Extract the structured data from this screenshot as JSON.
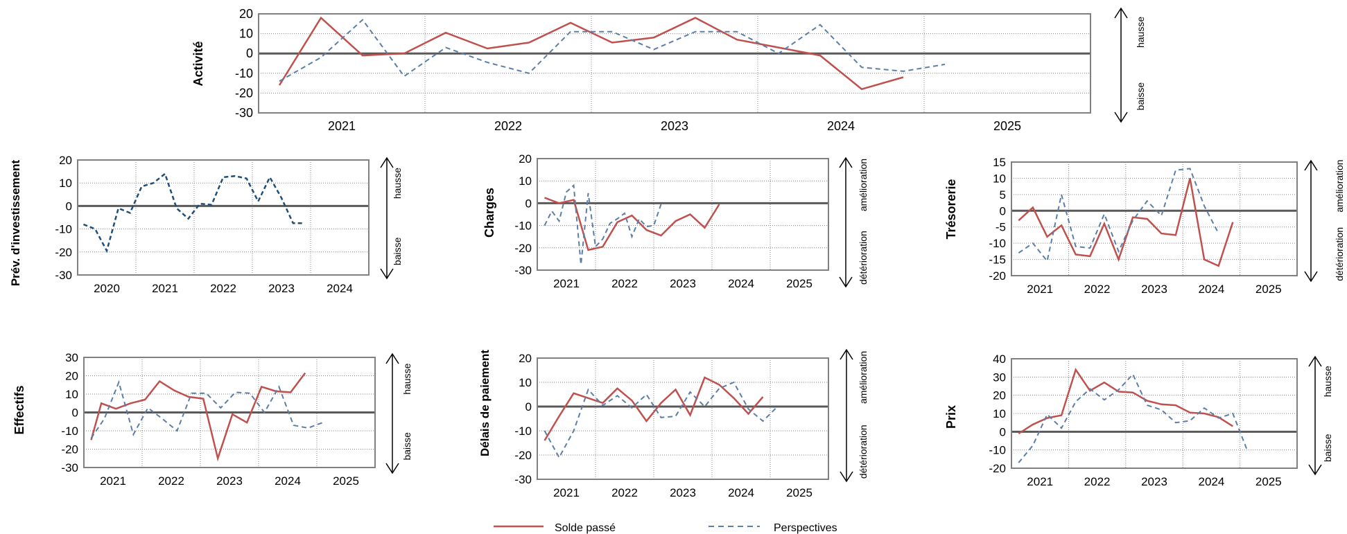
{
  "colors": {
    "past": "#c0504d",
    "outlook": "#5b7ea6",
    "investment": "#1f4e79",
    "zero_line": "#595959",
    "grid": "#7f7f7f"
  },
  "legend": {
    "past_label": "Solde passé",
    "outlook_label": "Perspectives"
  },
  "chart_data": [
    {
      "type": "line",
      "title": "Activité",
      "ylim": [
        -30,
        20
      ],
      "yticks": [
        -30,
        -20,
        -10,
        0,
        10,
        20
      ],
      "xlim": [
        2020.0,
        2025.0
      ],
      "xticks": [
        "2021",
        "2022",
        "2023",
        "2024",
        "2025"
      ],
      "grid_years": [
        2021,
        2022,
        2023,
        2024
      ],
      "arrow_labels": {
        "top": "hausse",
        "bottom": "baisse"
      },
      "series": [
        {
          "name": "Solde passé",
          "style": "past",
          "x": [
            2020.125,
            2020.375,
            2020.625,
            2020.875,
            2021.125,
            2021.375,
            2021.625,
            2021.875,
            2022.125,
            2022.375,
            2022.625,
            2022.875,
            2023.125,
            2023.375,
            2023.625,
            2023.875,
            2024.125
          ],
          "y": [
            -16,
            18,
            -1,
            0,
            10.5,
            2.5,
            5.5,
            15.5,
            5.5,
            8,
            18,
            7,
            3,
            -1,
            -18,
            -12,
            null
          ]
        },
        {
          "name": "Perspectives",
          "style": "outlook",
          "x": [
            2020.125,
            2020.375,
            2020.625,
            2020.875,
            2021.125,
            2021.375,
            2021.625,
            2021.875,
            2022.125,
            2022.375,
            2022.625,
            2022.875,
            2023.125,
            2023.375,
            2023.625,
            2023.875,
            2024.125,
            2024.375
          ],
          "y": [
            -14,
            -2,
            17,
            -11.5,
            3,
            -4.5,
            -10,
            11,
            11,
            2,
            11,
            11,
            0,
            14.5,
            -7,
            -9,
            -5.5,
            null
          ]
        }
      ]
    },
    {
      "type": "line",
      "title": "Prév. d'investissement",
      "ylim": [
        -30,
        20
      ],
      "yticks": [
        -30,
        -20,
        -10,
        0,
        10,
        20
      ],
      "xlim": [
        2019.5,
        2024.5
      ],
      "xticks": [
        "2020",
        "2021",
        "2022",
        "2023",
        "2024"
      ],
      "grid_years": [
        2020.5,
        2021.5,
        2022.5,
        2023.5
      ],
      "arrow_labels": {
        "top": "hausse",
        "bottom": "baisse"
      },
      "series": [
        {
          "name": "",
          "style": "investment",
          "x": [
            2019.6,
            2019.8,
            2020.0,
            2020.2,
            2020.4,
            2020.6,
            2020.8,
            2021.0,
            2021.2,
            2021.4,
            2021.6,
            2021.8,
            2022.0,
            2022.2,
            2022.4,
            2022.6,
            2022.8,
            2023.0,
            2023.2,
            2023.4,
            2023.6,
            2023.8,
            2024.0,
            2024.2,
            2024.4
          ],
          "y": [
            -8,
            -10,
            -19.5,
            -1,
            -3,
            8.5,
            10,
            14,
            -1,
            -5.5,
            1,
            0.5,
            12.5,
            13,
            12,
            2,
            12.5,
            3.5,
            -7.5,
            -7.5,
            null,
            null,
            null,
            null,
            null
          ]
        }
      ]
    },
    {
      "type": "line",
      "title": "Charges",
      "ylim": [
        -30,
        20
      ],
      "yticks": [
        -30,
        -20,
        -10,
        0,
        10,
        20
      ],
      "xlim": [
        2020.0,
        2025.0
      ],
      "xticks": [
        "2021",
        "2022",
        "2023",
        "2024",
        "2025"
      ],
      "grid_years": [
        2021,
        2022,
        2023,
        2024
      ],
      "arrow_labels": {
        "top": "amélioration",
        "bottom": "détérioration"
      },
      "series": [
        {
          "name": "Solde passé",
          "style": "past",
          "x": [
            2020.125,
            2020.375,
            2020.625,
            2020.875,
            2021.125,
            2021.375,
            2021.625,
            2021.875,
            2022.125,
            2022.375,
            2022.625,
            2022.875,
            2023.125,
            2023.375,
            2023.625,
            2023.875,
            2024.125
          ],
          "y": [
            2.5,
            0,
            1.5,
            -21,
            -19.5,
            -8.5,
            -5.5,
            -12,
            -14.5,
            -8,
            -5,
            -11,
            -0.5,
            null,
            null,
            null,
            null
          ]
        },
        {
          "name": "Perspectives",
          "style": "outlook",
          "x": [
            2020.125,
            2020.25,
            2020.375,
            2020.5,
            2020.625,
            2020.75,
            2020.875,
            2021.0,
            2021.125,
            2021.25,
            2021.375,
            2021.5,
            2021.625,
            2021.75,
            2021.875,
            2022.0,
            2022.125,
            2022.25,
            2022.375
          ],
          "y": [
            -10,
            -3.5,
            -8,
            5,
            8,
            -27.5,
            4.5,
            -19.5,
            -16,
            -9,
            -7,
            -4.5,
            -15,
            -7,
            -10.5,
            -10,
            -0.5,
            null,
            null
          ]
        }
      ]
    },
    {
      "type": "line",
      "title": "Trésorerie",
      "ylim": [
        -20,
        15
      ],
      "yticks": [
        -20,
        -15,
        -10,
        -5,
        0,
        5,
        10,
        15
      ],
      "xlim": [
        2020.0,
        2025.0
      ],
      "xticks": [
        "2021",
        "2022",
        "2023",
        "2024",
        "2025"
      ],
      "grid_years": [
        2021,
        2022,
        2023,
        2024
      ],
      "arrow_labels": {
        "top": "amélioration",
        "bottom": "détérioration"
      },
      "series": [
        {
          "name": "Solde passé",
          "style": "past",
          "x": [
            2020.125,
            2020.375,
            2020.625,
            2020.875,
            2021.125,
            2021.375,
            2021.625,
            2021.875,
            2022.125,
            2022.375,
            2022.625,
            2022.875,
            2023.125,
            2023.375,
            2023.625,
            2023.875,
            2024.125
          ],
          "y": [
            -3,
            1,
            -8,
            -4.5,
            -13.5,
            -14,
            -4,
            -15,
            -2,
            -2.5,
            -7,
            -7.5,
            10,
            -15,
            -17,
            -3.5,
            null
          ]
        },
        {
          "name": "Perspectives",
          "style": "outlook",
          "x": [
            2020.125,
            2020.375,
            2020.625,
            2020.875,
            2021.125,
            2021.375,
            2021.625,
            2021.875,
            2022.125,
            2022.375,
            2022.625,
            2022.875,
            2023.125,
            2023.375,
            2023.625,
            2023.875,
            2024.125
          ],
          "y": [
            -13,
            -10,
            -15.5,
            5,
            -11,
            -11.5,
            -1,
            -12.5,
            -3,
            3,
            -1.5,
            12.5,
            13,
            1.5,
            -7,
            null,
            null
          ]
        }
      ]
    },
    {
      "type": "line",
      "title": "Effectifs",
      "ylim": [
        -30,
        30
      ],
      "yticks": [
        -30,
        -20,
        -10,
        0,
        10,
        20,
        30
      ],
      "xlim": [
        2020.0,
        2025.0
      ],
      "xticks": [
        "2021",
        "2022",
        "2023",
        "2024",
        "2025"
      ],
      "grid_years": [
        2021,
        2022,
        2023,
        2024
      ],
      "arrow_labels": {
        "top": "hausse",
        "bottom": "baisse"
      },
      "series": [
        {
          "name": "Solde passé",
          "style": "past",
          "x": [
            2020.125,
            2020.3,
            2020.55,
            2020.8,
            2021.05,
            2021.3,
            2021.55,
            2021.8,
            2022.05,
            2022.3,
            2022.55,
            2022.8,
            2023.05,
            2023.3,
            2023.55,
            2023.8,
            2024.05
          ],
          "y": [
            -15,
            5,
            2,
            5,
            7,
            17,
            12,
            8.5,
            7.5,
            -25,
            -1,
            -5.5,
            14,
            11.5,
            11,
            21.5,
            null
          ]
        },
        {
          "name": "Perspectives",
          "style": "outlook",
          "x": [
            2020.125,
            2020.35,
            2020.6,
            2020.85,
            2021.1,
            2021.35,
            2021.6,
            2021.85,
            2022.1,
            2022.35,
            2022.6,
            2022.85,
            2023.1,
            2023.35,
            2023.6,
            2023.85,
            2024.1
          ],
          "y": [
            -14,
            -3.5,
            16.5,
            -12,
            2.5,
            -3.5,
            -10,
            10.5,
            10.5,
            2.5,
            11,
            10.5,
            0,
            14,
            -7,
            -8.5,
            -5.5
          ]
        }
      ]
    },
    {
      "type": "line",
      "title": "Délais de paiement",
      "ylim": [
        -30,
        20
      ],
      "yticks": [
        -30,
        -20,
        -10,
        0,
        10,
        20
      ],
      "xlim": [
        2020.0,
        2025.0
      ],
      "xticks": [
        "2021",
        "2022",
        "2023",
        "2024",
        "2025"
      ],
      "grid_years": [
        2021,
        2022,
        2023,
        2024
      ],
      "arrow_labels": {
        "top": "amélioration",
        "bottom": "détérioration"
      },
      "series": [
        {
          "name": "Solde passé",
          "style": "past",
          "x": [
            2020.125,
            2020.375,
            2020.625,
            2020.875,
            2021.125,
            2021.375,
            2021.625,
            2021.875,
            2022.125,
            2022.375,
            2022.625,
            2022.875,
            2023.125,
            2023.375,
            2023.625,
            2023.875,
            2024.125
          ],
          "y": [
            -14,
            -4,
            5.5,
            3.5,
            1.5,
            7.5,
            2.5,
            -6,
            1.5,
            7,
            -3.5,
            12,
            9,
            3.5,
            -3,
            4,
            null
          ]
        },
        {
          "name": "Perspectives",
          "style": "outlook",
          "x": [
            2020.125,
            2020.375,
            2020.625,
            2020.875,
            2021.125,
            2021.375,
            2021.625,
            2021.875,
            2022.125,
            2022.375,
            2022.625,
            2022.875,
            2023.125,
            2023.375,
            2023.625,
            2023.875,
            2024.125
          ],
          "y": [
            -10,
            -21,
            -10,
            7,
            0.5,
            4.5,
            -0.5,
            5,
            -4.5,
            -4,
            6,
            0,
            7.5,
            10,
            -1,
            -6,
            0
          ]
        }
      ]
    },
    {
      "type": "line",
      "title": "Prix",
      "ylim": [
        -20,
        40
      ],
      "yticks": [
        -20,
        -10,
        0,
        10,
        20,
        30,
        40
      ],
      "xlim": [
        2020.0,
        2025.0
      ],
      "xticks": [
        "2021",
        "2022",
        "2023",
        "2024",
        "2025"
      ],
      "grid_years": [
        2021,
        2022,
        2023,
        2024
      ],
      "arrow_labels": {
        "top": "hausse",
        "bottom": "baisse"
      },
      "series": [
        {
          "name": "Solde passé",
          "style": "past",
          "x": [
            2020.125,
            2020.375,
            2020.625,
            2020.875,
            2021.125,
            2021.375,
            2021.625,
            2021.875,
            2022.125,
            2022.375,
            2022.625,
            2022.875,
            2023.125,
            2023.375,
            2023.625,
            2023.875,
            2024.125
          ],
          "y": [
            -1,
            4,
            7.5,
            9,
            34,
            22.5,
            27,
            22,
            21.5,
            17,
            15,
            14.5,
            10.5,
            10,
            8,
            3,
            null
          ]
        },
        {
          "name": "Perspectives",
          "style": "outlook",
          "x": [
            2020.125,
            2020.375,
            2020.625,
            2020.875,
            2021.125,
            2021.375,
            2021.625,
            2021.875,
            2022.125,
            2022.375,
            2022.625,
            2022.875,
            2023.125,
            2023.375,
            2023.625,
            2023.875,
            2024.125
          ],
          "y": [
            -17,
            -7.5,
            9.5,
            2,
            16.5,
            23.5,
            17.5,
            23,
            31.5,
            14.5,
            12,
            5,
            6,
            13,
            7.5,
            10,
            -10
          ]
        }
      ]
    }
  ]
}
